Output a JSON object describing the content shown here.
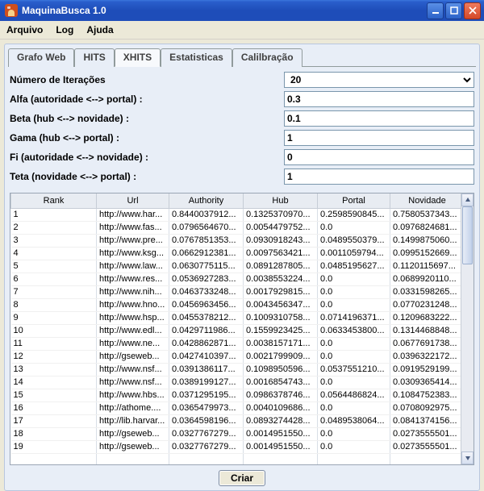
{
  "window": {
    "title": "MaquinaBusca 1.0"
  },
  "menubar": [
    "Arquivo",
    "Log",
    "Ajuda"
  ],
  "tabs": [
    {
      "label": "Grafo Web",
      "active": false
    },
    {
      "label": "HITS",
      "active": false
    },
    {
      "label": "XHITS",
      "active": true
    },
    {
      "label": "Estatisticas",
      "active": false
    },
    {
      "label": "Calilbração",
      "active": false
    }
  ],
  "form": {
    "iterations_label": "Número de Iterações",
    "iterations_value": "20",
    "alfa_label": "Alfa (autoridade <--> portal) :",
    "alfa_value": "0.3",
    "beta_label": "Beta (hub <--> novidade) :",
    "beta_value": "0.1",
    "gama_label": "Gama (hub <--> portal) :",
    "gama_value": "1",
    "fi_label": "Fi   (autoridade <--> novidade) :",
    "fi_value": "0",
    "teta_label": "Teta (novidade <--> portal) :",
    "teta_value": "1"
  },
  "table": {
    "columns": [
      "Rank",
      "Url",
      "Authority",
      "Hub",
      "Portal",
      "Novidade"
    ],
    "rows": [
      [
        "1",
        "http://www.har...",
        "0.8440037912...",
        "0.1325370970...",
        "0.2598590845...",
        "0.7580537343..."
      ],
      [
        "2",
        "http://www.fas...",
        "0.0796564670...",
        "0.0054479752...",
        "0.0",
        "0.0976824681..."
      ],
      [
        "3",
        "http://www.pre...",
        "0.0767851353...",
        "0.0930918243...",
        "0.0489550379...",
        "0.1499875060..."
      ],
      [
        "4",
        "http://www.ksg...",
        "0.0662912381...",
        "0.0097563421...",
        "0.0011059794...",
        "0.0995152669..."
      ],
      [
        "5",
        "http://www.law...",
        "0.0630775115...",
        "0.0891287805...",
        "0.0485195627...",
        "0.1120115697..."
      ],
      [
        "6",
        "http://www.res...",
        "0.0536927283...",
        "0.0038553224...",
        "0.0",
        "0.0689920110..."
      ],
      [
        "7",
        "http://www.nih...",
        "0.0463733248...",
        "0.0017929815...",
        "0.0",
        "0.0331598265..."
      ],
      [
        "8",
        "http://www.hno...",
        "0.0456963456...",
        "0.0043456347...",
        "0.0",
        "0.0770231248..."
      ],
      [
        "9",
        "http://www.hsp...",
        "0.0455378212...",
        "0.1009310758...",
        "0.0714196371...",
        "0.1209683222..."
      ],
      [
        "10",
        "http://www.edl...",
        "0.0429711986...",
        "0.1559923425...",
        "0.0633453800...",
        "0.1314468848..."
      ],
      [
        "11",
        "http://www.ne...",
        "0.0428862871...",
        "0.0038157171...",
        "0.0",
        "0.0677691738..."
      ],
      [
        "12",
        "http://gseweb...",
        "0.0427410397...",
        "0.0021799909...",
        "0.0",
        "0.0396322172..."
      ],
      [
        "13",
        "http://www.nsf...",
        "0.0391386117...",
        "0.1098950596...",
        "0.0537551210...",
        "0.0919529199..."
      ],
      [
        "14",
        "http://www.nsf...",
        "0.0389199127...",
        "0.0016854743...",
        "0.0",
        "0.0309365414..."
      ],
      [
        "15",
        "http://www.hbs...",
        "0.0371295195...",
        "0.0986378746...",
        "0.0564486824...",
        "0.1084752383..."
      ],
      [
        "16",
        "http://athome....",
        "0.0365479973...",
        "0.0040109686...",
        "0.0",
        "0.0708092975..."
      ],
      [
        "17",
        "http://lib.harvar...",
        "0.0364598196...",
        "0.0893274428...",
        "0.0489538064...",
        "0.0841374156..."
      ],
      [
        "18",
        "http://gseweb...",
        "0.0327767279...",
        "0.0014951550...",
        "0.0",
        "0.0273555501..."
      ],
      [
        "19",
        "http://gseweb...",
        "0.0327767279...",
        "0.0014951550...",
        "0.0",
        "0.0273555501..."
      ]
    ]
  },
  "bottom_button": "Criar",
  "colors": {
    "titlebar_start": "#3b77dd",
    "titlebar_end": "#1e4db9",
    "panel_bg": "#e8eef7",
    "body_bg": "#ece9d8",
    "close_btn": "#d44828"
  }
}
